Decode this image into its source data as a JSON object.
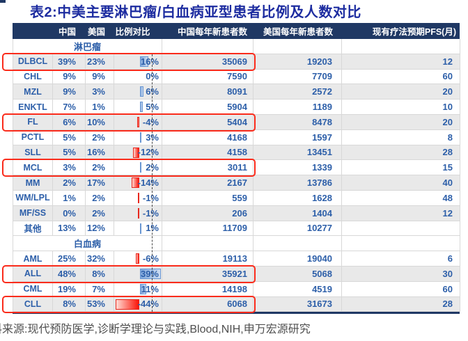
{
  "title": "表2:中美主要淋巴瘤/白血病亚型患者比例及人数对比",
  "header": {
    "columns": [
      "",
      "中国",
      "美国",
      "比例对比",
      "中国每年新患者数",
      "美国每年新患者数",
      "现有疗法预期PFS(月)"
    ]
  },
  "sections": [
    {
      "name": "淋巴瘤",
      "rows": [
        {
          "label": "DLBCL",
          "cn": "39%",
          "us": "23%",
          "diff": 16,
          "diff_label": "16%",
          "cn_new": "35069",
          "us_new": "19203",
          "pfs": "12",
          "highlighted": true
        },
        {
          "label": "CHL",
          "cn": "9%",
          "us": "9%",
          "diff": 0,
          "diff_label": "0%",
          "cn_new": "7590",
          "us_new": "7709",
          "pfs": "60",
          "highlighted": false
        },
        {
          "label": "MZL",
          "cn": "9%",
          "us": "3%",
          "diff": 6,
          "diff_label": "6%",
          "cn_new": "8091",
          "us_new": "2572",
          "pfs": "20",
          "highlighted": false
        },
        {
          "label": "ENKTL",
          "cn": "7%",
          "us": "1%",
          "diff": 5,
          "diff_label": "5%",
          "cn_new": "5904",
          "us_new": "1189",
          "pfs": "10",
          "highlighted": false
        },
        {
          "label": "FL",
          "cn": "6%",
          "us": "10%",
          "diff": -4,
          "diff_label": "-4%",
          "cn_new": "5404",
          "us_new": "8478",
          "pfs": "20",
          "highlighted": true
        },
        {
          "label": "PCTL",
          "cn": "5%",
          "us": "2%",
          "diff": 3,
          "diff_label": "3%",
          "cn_new": "4168",
          "us_new": "1597",
          "pfs": "8",
          "highlighted": false
        },
        {
          "label": "SLL",
          "cn": "5%",
          "us": "16%",
          "diff": -12,
          "diff_label": "-12%",
          "cn_new": "4158",
          "us_new": "13451",
          "pfs": "28",
          "highlighted": false
        },
        {
          "label": "MCL",
          "cn": "3%",
          "us": "2%",
          "diff": 2,
          "diff_label": "2%",
          "cn_new": "3011",
          "us_new": "1339",
          "pfs": "15",
          "highlighted": true
        },
        {
          "label": "MM",
          "cn": "2%",
          "us": "17%",
          "diff": -14,
          "diff_label": "-14%",
          "cn_new": "2167",
          "us_new": "13786",
          "pfs": "40",
          "highlighted": false
        },
        {
          "label": "WM/LPL",
          "cn": "1%",
          "us": "2%",
          "diff": -1,
          "diff_label": "-1%",
          "cn_new": "559",
          "us_new": "1628",
          "pfs": "48",
          "highlighted": false
        },
        {
          "label": "MF/SS",
          "cn": "0%",
          "us": "2%",
          "diff": -1,
          "diff_label": "-1%",
          "cn_new": "206",
          "us_new": "1404",
          "pfs": "12",
          "highlighted": false
        },
        {
          "label": "其他",
          "cn": "13%",
          "us": "12%",
          "diff": 1,
          "diff_label": "1%",
          "cn_new": "11709",
          "us_new": "10277",
          "pfs": "",
          "highlighted": false
        }
      ]
    },
    {
      "name": "白血病",
      "rows": [
        {
          "label": "AML",
          "cn": "25%",
          "us": "32%",
          "diff": -6,
          "diff_label": "-6%",
          "cn_new": "19113",
          "us_new": "19040",
          "pfs": "6",
          "highlighted": false
        },
        {
          "label": "ALL",
          "cn": "48%",
          "us": "8%",
          "diff": 39,
          "diff_label": "39%",
          "cn_new": "35921",
          "us_new": "5068",
          "pfs": "30",
          "highlighted": true
        },
        {
          "label": "CML",
          "cn": "19%",
          "us": "7%",
          "diff": 11,
          "diff_label": "11%",
          "cn_new": "14198",
          "us_new": "4519",
          "pfs": "60",
          "highlighted": false
        },
        {
          "label": "CLL",
          "cn": "8%",
          "us": "53%",
          "diff": -44,
          "diff_label": "-44%",
          "cn_new": "6068",
          "us_new": "31673",
          "pfs": "28",
          "highlighted": true
        }
      ]
    }
  ],
  "source_line": "料来源:现代预防医学,诊断学理论与实践,Blood,NIH,申万宏源研究",
  "colors": {
    "header_bg": "#1F3864",
    "title_blue": "#1D2CA0",
    "data_blue": "#2D5FA9",
    "stripe_gray": "#E9E9E9",
    "positive_bar_blue": "#7FA7DC",
    "negative_bar_red": "#FB1408",
    "highlight_red": "#FA2B1B"
  }
}
